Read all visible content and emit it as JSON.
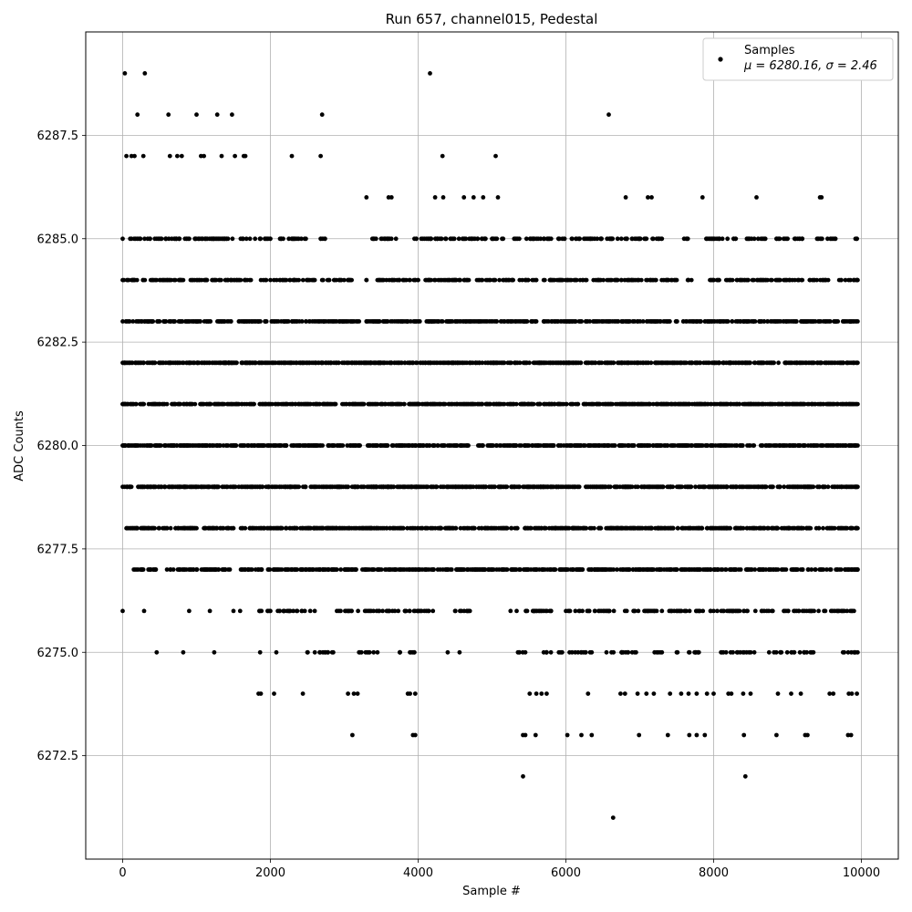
{
  "chart_data": {
    "type": "scatter",
    "title": "Run 657, channel015, Pedestal",
    "xlabel": "Sample #",
    "ylabel": "ADC Counts",
    "xlim": [
      -500,
      10500
    ],
    "ylim": [
      6270,
      6290
    ],
    "xticks": [
      0,
      2000,
      4000,
      6000,
      8000,
      10000
    ],
    "xtick_labels": [
      "0",
      "2000",
      "4000",
      "6000",
      "8000",
      "10000"
    ],
    "yticks": [
      6272.5,
      6275.0,
      6277.5,
      6280.0,
      6282.5,
      6285.0,
      6287.5
    ],
    "ytick_labels": [
      "6272.5",
      "6275.0",
      "6277.5",
      "6280.0",
      "6282.5",
      "6285.0",
      "6287.5"
    ],
    "grid": true,
    "legend": "top-right",
    "marker_color": "#000000",
    "series": [
      {
        "name": "Samples",
        "stats_label": "μ = 6280.16, σ = 2.46",
        "sample_count": 10000,
        "mean": 6280.16,
        "std": 2.46,
        "points": [
          [
            30,
            6289
          ],
          [
            300,
            6289
          ],
          [
            4160,
            6289
          ],
          [
            200,
            6288
          ],
          [
            620,
            6288
          ],
          [
            1000,
            6288
          ],
          [
            1280,
            6288
          ],
          [
            1480,
            6288
          ],
          [
            2700,
            6288
          ],
          [
            6580,
            6288
          ],
          [
            50,
            6287
          ],
          [
            120,
            6287
          ],
          [
            160,
            6287
          ],
          [
            280,
            6287
          ],
          [
            640,
            6287
          ],
          [
            740,
            6287
          ],
          [
            800,
            6287
          ],
          [
            1060,
            6287
          ],
          [
            1100,
            6287
          ],
          [
            1340,
            6287
          ],
          [
            1520,
            6287
          ],
          [
            1640,
            6287
          ],
          [
            1660,
            6287
          ],
          [
            2290,
            6287
          ],
          [
            2680,
            6287
          ],
          [
            4330,
            6287
          ],
          [
            5050,
            6287
          ],
          [
            6810,
            6286
          ],
          [
            7110,
            6286
          ],
          [
            7160,
            6286
          ],
          [
            7850,
            6286
          ],
          [
            8580,
            6286
          ],
          [
            9440,
            6286
          ],
          [
            9460,
            6286
          ],
          [
            3300,
            6286
          ],
          [
            3600,
            6286
          ],
          [
            3640,
            6286
          ],
          [
            4230,
            6286
          ],
          [
            4340,
            6286
          ],
          [
            4620,
            6286
          ],
          [
            4750,
            6286
          ],
          [
            4880,
            6286
          ],
          [
            5080,
            6286
          ],
          [
            0,
            6276
          ],
          [
            290,
            6276
          ],
          [
            900,
            6276
          ],
          [
            1180,
            6276
          ],
          [
            1500,
            6276
          ],
          [
            1590,
            6276
          ],
          [
            460,
            6275
          ],
          [
            820,
            6275
          ],
          [
            1240,
            6275
          ],
          [
            1860,
            6275
          ],
          [
            2080,
            6275
          ],
          [
            4400,
            6275
          ],
          [
            4560,
            6275
          ],
          [
            1840,
            6274
          ],
          [
            1870,
            6274
          ],
          [
            2050,
            6274
          ],
          [
            2440,
            6274
          ],
          [
            3050,
            6274
          ],
          [
            3130,
            6274
          ],
          [
            3180,
            6274
          ],
          [
            3860,
            6274
          ],
          [
            3890,
            6274
          ],
          [
            3960,
            6274
          ],
          [
            5510,
            6274
          ],
          [
            5600,
            6274
          ],
          [
            5670,
            6274
          ],
          [
            5740,
            6274
          ],
          [
            6300,
            6274
          ],
          [
            6740,
            6274
          ],
          [
            6800,
            6274
          ],
          [
            6970,
            6274
          ],
          [
            7090,
            6274
          ],
          [
            7190,
            6274
          ],
          [
            7410,
            6274
          ],
          [
            7560,
            6274
          ],
          [
            7660,
            6274
          ],
          [
            7770,
            6274
          ],
          [
            7910,
            6274
          ],
          [
            8000,
            6274
          ],
          [
            8200,
            6274
          ],
          [
            8240,
            6274
          ],
          [
            8400,
            6274
          ],
          [
            8500,
            6274
          ],
          [
            8870,
            6274
          ],
          [
            9050,
            6274
          ],
          [
            9180,
            6274
          ],
          [
            9570,
            6274
          ],
          [
            9620,
            6274
          ],
          [
            9830,
            6274
          ],
          [
            9870,
            6274
          ],
          [
            9940,
            6274
          ],
          [
            3110,
            6273
          ],
          [
            3930,
            6273
          ],
          [
            3960,
            6273
          ],
          [
            5420,
            6273
          ],
          [
            5450,
            6273
          ],
          [
            5590,
            6273
          ],
          [
            6020,
            6273
          ],
          [
            6210,
            6273
          ],
          [
            6350,
            6273
          ],
          [
            6990,
            6273
          ],
          [
            7380,
            6273
          ],
          [
            7670,
            6273
          ],
          [
            7770,
            6273
          ],
          [
            7880,
            6273
          ],
          [
            8410,
            6273
          ],
          [
            8850,
            6273
          ],
          [
            9240,
            6273
          ],
          [
            9270,
            6273
          ],
          [
            9820,
            6273
          ],
          [
            9860,
            6273
          ],
          [
            5420,
            6272
          ],
          [
            8430,
            6272
          ],
          [
            6640,
            6271
          ]
        ],
        "bands": [
          {
            "value": 6285,
            "ranges": [
              [
                0,
                2000
              ],
              [
                2130,
                2480
              ],
              [
                2680,
                2740
              ],
              [
                3380,
                3700
              ],
              [
                3950,
                5150
              ],
              [
                5300,
                5800
              ],
              [
                5900,
                6700
              ],
              [
                6750,
                7300
              ],
              [
                7600,
                7650
              ],
              [
                7900,
                8300
              ],
              [
                8450,
                8700
              ],
              [
                8850,
                9200
              ],
              [
                9400,
                9650
              ],
              [
                9920,
                9940
              ]
            ],
            "density": 0.55
          },
          {
            "value": 6284,
            "ranges": [
              [
                0,
                300
              ],
              [
                380,
                2000
              ],
              [
                2050,
                2600
              ],
              [
                2700,
                3100
              ],
              [
                3300,
                3300
              ],
              [
                3450,
                4000
              ],
              [
                4100,
                5100
              ],
              [
                5150,
                5600
              ],
              [
                5700,
                6700
              ],
              [
                6750,
                7500
              ],
              [
                7650,
                7700
              ],
              [
                7950,
                8900
              ],
              [
                8950,
                9200
              ],
              [
                9300,
                9550
              ],
              [
                9700,
                9950
              ]
            ],
            "density": 0.6
          },
          {
            "value": 6283,
            "ranges": [
              [
                0,
                3200
              ],
              [
                3300,
                5600
              ],
              [
                5700,
                9950
              ]
            ],
            "density": 0.85
          },
          {
            "value": 6282,
            "ranges": [
              [
                0,
                9950
              ]
            ],
            "density": 0.95
          },
          {
            "value": 6281,
            "ranges": [
              [
                0,
                9950
              ]
            ],
            "density": 0.95
          },
          {
            "value": 6280,
            "ranges": [
              [
                0,
                9950
              ]
            ],
            "density": 0.95
          },
          {
            "value": 6279,
            "ranges": [
              [
                0,
                9950
              ]
            ],
            "density": 0.95
          },
          {
            "value": 6278,
            "ranges": [
              [
                50,
                200
              ],
              [
                250,
                600
              ],
              [
                650,
                1000
              ],
              [
                1100,
                1500
              ],
              [
                1600,
                9950
              ]
            ],
            "density": 0.88
          },
          {
            "value": 6277,
            "ranges": [
              [
                150,
                450
              ],
              [
                600,
                1300
              ],
              [
                1350,
                1450
              ],
              [
                1600,
                1750
              ],
              [
                1800,
                9950
              ]
            ],
            "density": 0.8
          },
          {
            "value": 6276,
            "ranges": [
              [
                1850,
                2000
              ],
              [
                2100,
                2600
              ],
              [
                2900,
                4200
              ],
              [
                4500,
                4700
              ],
              [
                5250,
                5800
              ],
              [
                6000,
                6650
              ],
              [
                6800,
                7300
              ],
              [
                7400,
                8000
              ],
              [
                8050,
                8800
              ],
              [
                8950,
                9900
              ]
            ],
            "density": 0.45
          },
          {
            "value": 6275,
            "ranges": [
              [
                2500,
                2850
              ],
              [
                3200,
                3450
              ],
              [
                3750,
                3950
              ],
              [
                5350,
                5450
              ],
              [
                5700,
                5950
              ],
              [
                6050,
                6350
              ],
              [
                6550,
                6950
              ],
              [
                7200,
                7300
              ],
              [
                7500,
                7800
              ],
              [
                8100,
                8550
              ],
              [
                8750,
                9350
              ],
              [
                9750,
                9950
              ]
            ],
            "density": 0.35
          }
        ]
      }
    ]
  }
}
